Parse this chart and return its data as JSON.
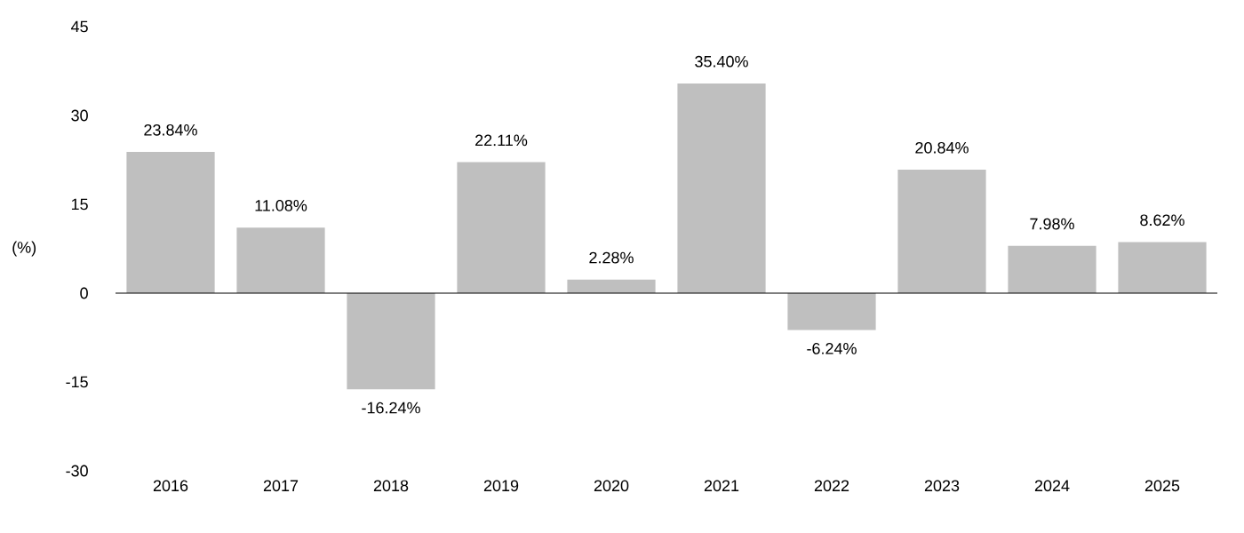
{
  "chart_data": {
    "type": "bar",
    "ylabel": "(%)",
    "categories": [
      "2016",
      "2017",
      "2018",
      "2019",
      "2020",
      "2021",
      "2022",
      "2023",
      "2024",
      "2025"
    ],
    "values": [
      23.84,
      11.08,
      -16.24,
      22.11,
      2.28,
      35.4,
      -6.24,
      20.84,
      7.98,
      8.62
    ],
    "value_labels": [
      "23.84%",
      "11.08%",
      "-16.24%",
      "22.11%",
      "2.28%",
      "35.40%",
      "-6.24%",
      "20.84%",
      "7.98%",
      "8.62%"
    ],
    "color": "#bfbfbf",
    "ylim": [
      -30,
      45
    ],
    "yticks": [
      -30,
      -15,
      0,
      15,
      30,
      45
    ]
  }
}
